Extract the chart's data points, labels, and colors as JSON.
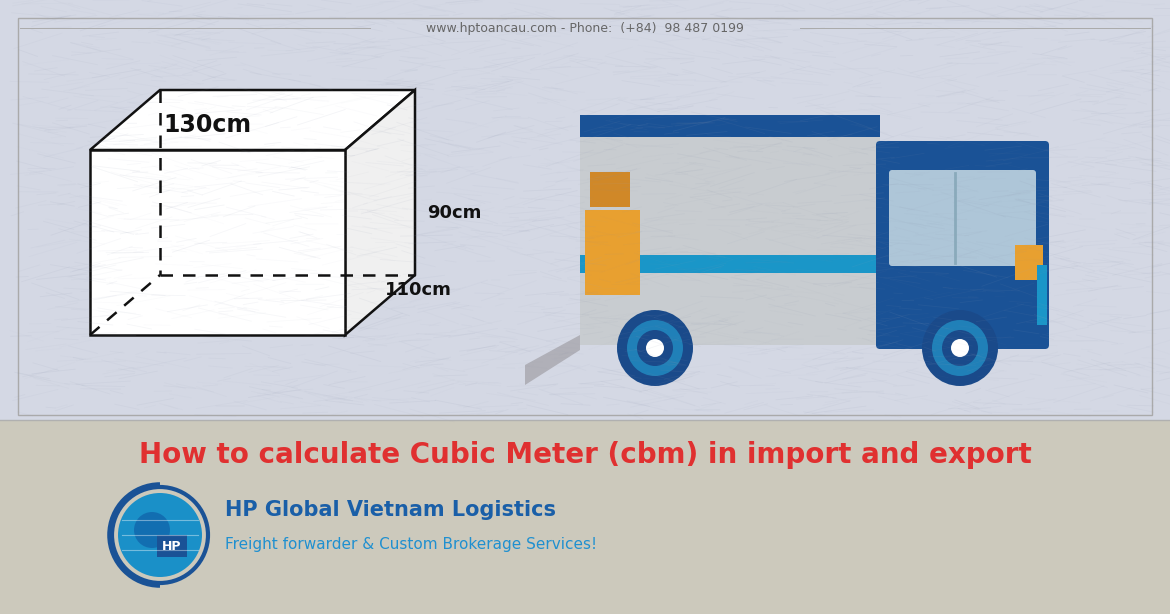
{
  "bg_top_color": "#d4d8e4",
  "bg_bottom_color": "#ccc9bc",
  "border_color": "#aaaaaa",
  "website_text": "www.hptoancau.com - Phone:  (+84)  98 487 0199",
  "website_color": "#666666",
  "title_text": "How to calculate Cubic Meter (cbm) in import and export",
  "title_color": "#e03030",
  "company_name": "HP Global Vietnam Logistics",
  "company_color": "#1a5fa8",
  "tagline": "Freight forwarder & Custom Brokerage Services!",
  "tagline_color": "#2090d0",
  "dim_130": "130cm",
  "dim_90": "90cm",
  "dim_110": "110cm",
  "dim_color": "#111111",
  "box_color": "#111111",
  "truck_blue_dark": "#1a5296",
  "truck_blue_mid": "#1a7ab8",
  "truck_blue_light": "#1a96c8",
  "truck_gray_light": "#c8ccd0",
  "truck_gray_cargo": "#b8bcc4",
  "truck_orange": "#e8a030",
  "truck_orange2": "#d08828",
  "truck_ramp": "#b0b0b8",
  "truck_wheel_dark": "#1a4a8a",
  "truck_wheel_mid": "#2080b8",
  "logo_blue_dark": "#1a5296",
  "logo_blue_light": "#2090d0",
  "logo_globe": "#1a90c8"
}
